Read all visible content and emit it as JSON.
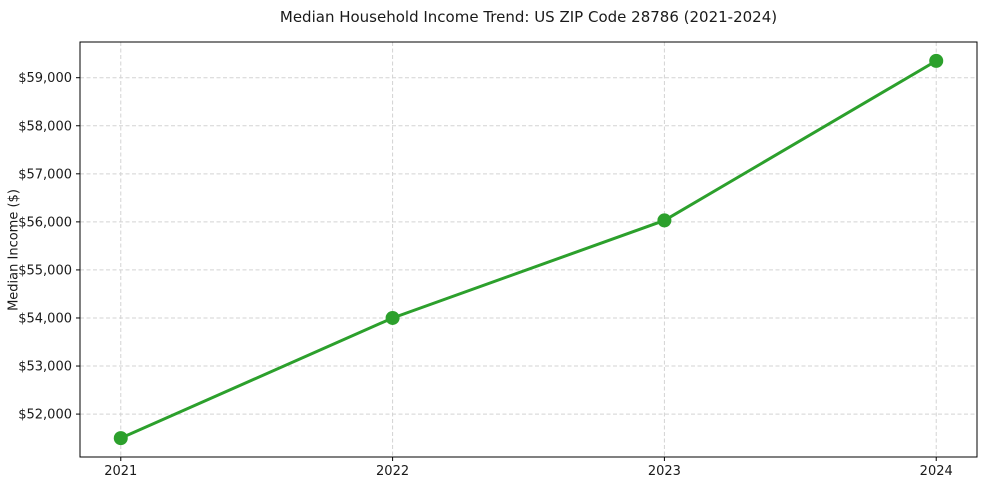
{
  "figure": {
    "title": "Median Household Income Trend: US ZIP Code 28786 (2021-2024)",
    "ylabel": "Median Income ($)"
  },
  "chart_data": {
    "type": "line",
    "title": "Median Household Income Trend: US ZIP Code 28786 (2021-2024)",
    "xlabel": "",
    "ylabel": "Median Income ($)",
    "x": [
      2021,
      2022,
      2023,
      2024
    ],
    "values": [
      51500,
      54000,
      56030,
      59350
    ],
    "series_name": "Median Household Income",
    "xlim": [
      2020.85,
      2024.15
    ],
    "ylim": [
      51107,
      59743
    ],
    "xticks": [
      2021,
      2022,
      2023,
      2024
    ],
    "xtick_labels": [
      "2021",
      "2022",
      "2023",
      "2024"
    ],
    "yticks": [
      52000,
      53000,
      54000,
      55000,
      56000,
      57000,
      58000,
      59000
    ],
    "ytick_labels": [
      "$52,000",
      "$53,000",
      "$54,000",
      "$55,000",
      "$56,000",
      "$57,000",
      "$58,000",
      "$59,000"
    ],
    "grid": true,
    "legend": "none",
    "line_color": "#2ca02c",
    "marker_color": "#2ca02c",
    "grid_color": "#d3d3d3",
    "spine_color": "#000000",
    "background_color": "#ffffff",
    "line_width": 3,
    "marker_radius": 7
  }
}
